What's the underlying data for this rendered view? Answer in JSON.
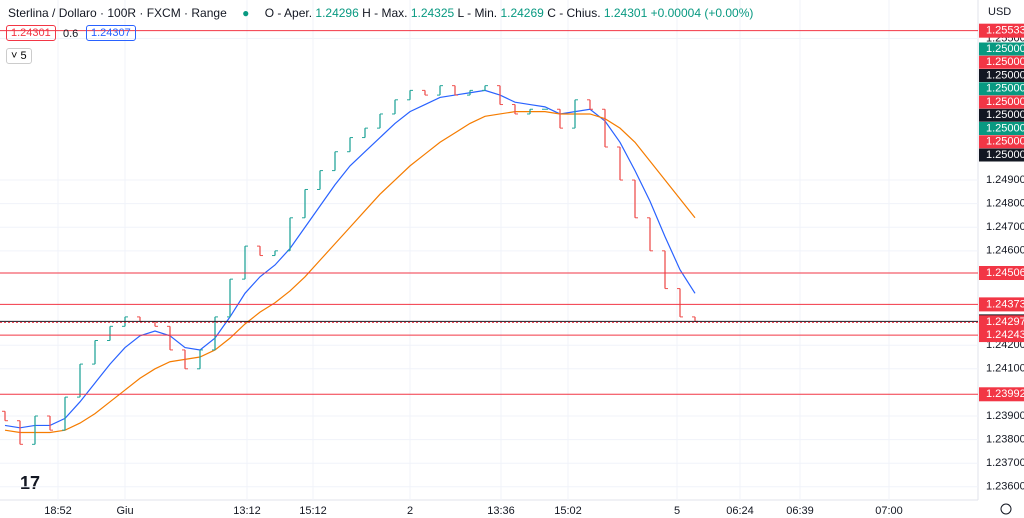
{
  "header": {
    "symbol": "Sterlina / Dollaro · 100R · FXCM · Range",
    "open_label": "O - Aper.",
    "open": 1.24296,
    "high_label": "H - Max.",
    "high": 1.24325,
    "low_label": "L - Min.",
    "low": 1.24269,
    "close_label": "C - Chius.",
    "close": 1.24301,
    "change": "+0.00004 (+0.00%)",
    "bid": 1.24301,
    "spread": 0.6,
    "ask": 1.24307,
    "indicators": 5,
    "currency": "USD"
  },
  "chart_data": {
    "type": "ohlc",
    "open": [
      1.2392,
      1.2388,
      1.2378,
      1.239,
      1.2384,
      1.2398,
      1.2412,
      1.2422,
      1.2428,
      1.2432,
      1.243,
      1.2428,
      1.2418,
      1.241,
      1.2418,
      1.2432,
      1.2448,
      1.2462,
      1.2458,
      1.246,
      1.2474,
      1.2486,
      1.2494,
      1.2502,
      1.2508,
      1.2512,
      1.2518,
      1.2524,
      1.2528,
      1.2526,
      1.253,
      1.2526,
      1.2528,
      1.253,
      1.2522,
      1.2518,
      1.252,
      1.252,
      1.2512,
      1.2524,
      1.252,
      1.2504,
      1.249,
      1.2474,
      1.246,
      1.2444,
      1.2432
    ],
    "close": [
      1.2388,
      1.2378,
      1.239,
      1.2384,
      1.2398,
      1.2412,
      1.2422,
      1.2428,
      1.2432,
      1.243,
      1.2428,
      1.2418,
      1.241,
      1.2418,
      1.2432,
      1.2448,
      1.2462,
      1.2458,
      1.246,
      1.2474,
      1.2486,
      1.2494,
      1.2502,
      1.2508,
      1.2512,
      1.2518,
      1.2524,
      1.2528,
      1.2526,
      1.253,
      1.2526,
      1.2528,
      1.253,
      1.2522,
      1.2518,
      1.252,
      1.252,
      1.2512,
      1.2524,
      1.252,
      1.2504,
      1.249,
      1.2474,
      1.246,
      1.2444,
      1.2432,
      1.24301
    ],
    "up_color": "#26a69a",
    "down_color": "#ef5350",
    "series": [
      {
        "color": "#2962ff",
        "values": [
          1.2386,
          1.2385,
          1.2386,
          1.2386,
          1.2389,
          1.2396,
          1.2404,
          1.2412,
          1.2419,
          1.2424,
          1.2426,
          1.2424,
          1.2419,
          1.2418,
          1.2423,
          1.2432,
          1.2442,
          1.2449,
          1.2454,
          1.2461,
          1.247,
          1.2479,
          1.2488,
          1.2496,
          1.2502,
          1.2508,
          1.2514,
          1.2519,
          1.2522,
          1.2525,
          1.2526,
          1.2527,
          1.2528,
          1.2526,
          1.2523,
          1.2522,
          1.2521,
          1.2518,
          1.2519,
          1.252,
          1.2515,
          1.2506,
          1.2494,
          1.2481,
          1.2466,
          1.2452,
          1.2442
        ]
      },
      {
        "color": "#f57c00",
        "values": [
          1.2384,
          1.2383,
          1.2383,
          1.2383,
          1.2384,
          1.2387,
          1.2391,
          1.2396,
          1.2401,
          1.2406,
          1.241,
          1.2413,
          1.2414,
          1.2415,
          1.2418,
          1.2423,
          1.2429,
          1.2434,
          1.2438,
          1.2443,
          1.2449,
          1.2456,
          1.2463,
          1.247,
          1.2477,
          1.2484,
          1.249,
          1.2496,
          1.2501,
          1.2506,
          1.251,
          1.2514,
          1.2517,
          1.2518,
          1.2519,
          1.2519,
          1.2519,
          1.2518,
          1.2518,
          1.2518,
          1.2516,
          1.2512,
          1.2506,
          1.2498,
          1.249,
          1.2482,
          1.2474
        ]
      }
    ],
    "ylim": [
      1.23544,
      1.25663
    ],
    "yticks": [
      {
        "value": 1.236,
        "label": "1.23600"
      },
      {
        "value": 1.237,
        "label": "1.23700"
      },
      {
        "value": 1.238,
        "label": "1.23800"
      },
      {
        "value": 1.239,
        "label": "1.23900"
      },
      {
        "value": 1.241,
        "label": "1.24100"
      },
      {
        "value": 1.242,
        "label": "1.24200"
      },
      {
        "value": 1.246,
        "label": "1.24600"
      },
      {
        "value": 1.247,
        "label": "1.24700"
      },
      {
        "value": 1.248,
        "label": "1.24800"
      },
      {
        "value": 1.249,
        "label": "1.24900"
      },
      {
        "value": 1.255,
        "label": "1.25500"
      }
    ],
    "x_labels": [
      "18:52",
      "Giu",
      "13:12",
      "15:12",
      "2",
      "13:36",
      "15:02",
      "5",
      "06:24",
      "06:39",
      "07:00"
    ],
    "levels": [
      {
        "value": 1.25533,
        "label": "1.25533",
        "color": "#f23645"
      },
      {
        "value": 1.24506,
        "label": "1.24506",
        "color": "#f23645"
      },
      {
        "value": 1.24373,
        "label": "1.24373",
        "color": "#f23645"
      },
      {
        "value": 1.24301,
        "label": "1.24301",
        "color": "#131722"
      },
      {
        "value": 1.24297,
        "label": "1.24297",
        "color": "#f23645"
      },
      {
        "value": 1.24243,
        "label": "1.24243",
        "color": "#f23645"
      },
      {
        "value": 1.23992,
        "label": "1.23992",
        "color": "#f23645"
      }
    ],
    "stacked_tags": [
      {
        "value": 1.25,
        "label": "1.25000",
        "color": "#089981"
      },
      {
        "value": 1.25,
        "label": "1.25000",
        "color": "#f23645"
      },
      {
        "value": 1.25,
        "label": "1.25000",
        "color": "#131722"
      },
      {
        "value": 1.25,
        "label": "1.25000",
        "color": "#089981"
      },
      {
        "value": 1.25,
        "label": "1.25000",
        "color": "#f23645"
      },
      {
        "value": 1.25,
        "label": "1.25000",
        "color": "#131722"
      },
      {
        "value": 1.25,
        "label": "1.25000",
        "color": "#089981"
      },
      {
        "value": 1.25,
        "label": "1.25000",
        "color": "#f23645"
      },
      {
        "value": 1.25,
        "label": "1.25000",
        "color": "#131722"
      }
    ],
    "grid": true
  }
}
